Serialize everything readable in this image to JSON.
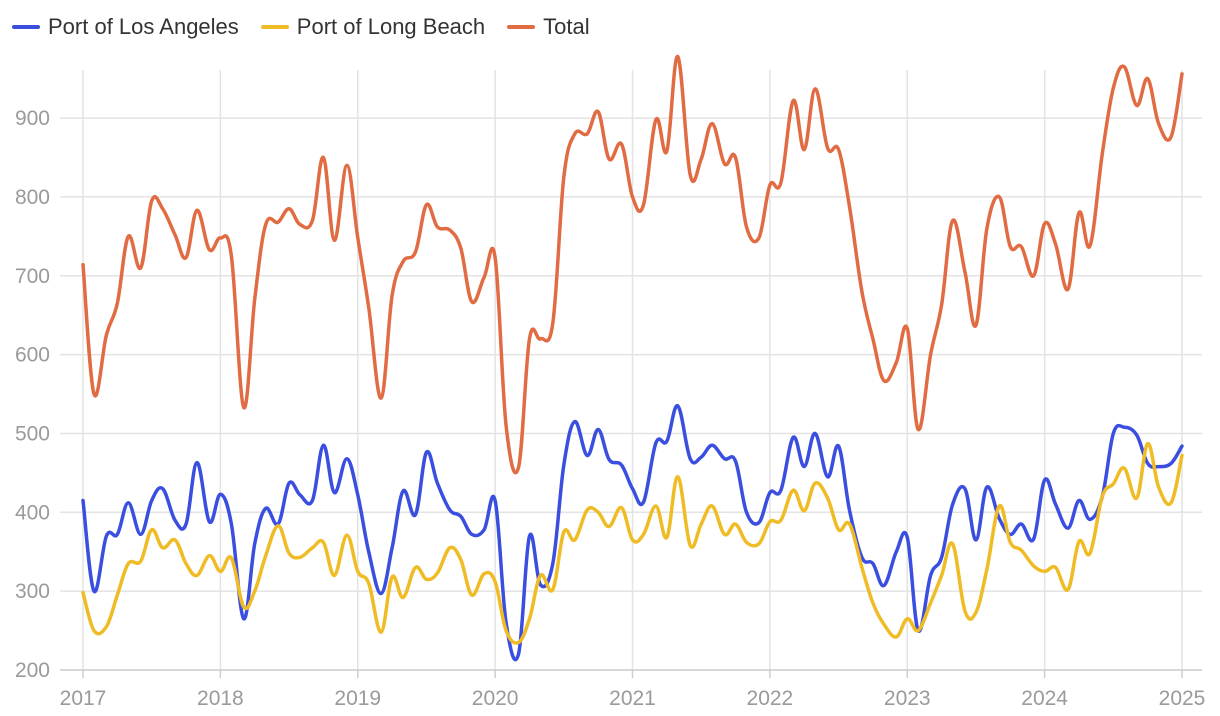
{
  "chart_data": {
    "type": "line",
    "title": "",
    "xlabel": "",
    "ylabel": "",
    "xlim": [
      2017,
      2025
    ],
    "ylim": [
      200,
      980
    ],
    "x_ticks": [
      "2017",
      "2018",
      "2019",
      "2020",
      "2021",
      "2022",
      "2023",
      "2024",
      "2025"
    ],
    "y_ticks": [
      "200",
      "300",
      "400",
      "500",
      "600",
      "700",
      "800",
      "900"
    ],
    "grid": true,
    "legend_position": "top-left",
    "series": [
      {
        "name": "Port of Los Angeles",
        "color": "#3a4ee0",
        "points": [
          [
            2017.0,
            415
          ],
          [
            2017.08,
            300
          ],
          [
            2017.17,
            370
          ],
          [
            2017.25,
            372
          ],
          [
            2017.33,
            412
          ],
          [
            2017.42,
            372
          ],
          [
            2017.5,
            415
          ],
          [
            2017.58,
            430
          ],
          [
            2017.67,
            390
          ],
          [
            2017.75,
            385
          ],
          [
            2017.83,
            463
          ],
          [
            2017.92,
            388
          ],
          [
            2018.0,
            423
          ],
          [
            2018.08,
            385
          ],
          [
            2018.17,
            265
          ],
          [
            2018.25,
            360
          ],
          [
            2018.33,
            405
          ],
          [
            2018.42,
            385
          ],
          [
            2018.5,
            437
          ],
          [
            2018.58,
            422
          ],
          [
            2018.67,
            415
          ],
          [
            2018.75,
            485
          ],
          [
            2018.83,
            425
          ],
          [
            2018.92,
            468
          ],
          [
            2019.0,
            422
          ],
          [
            2019.08,
            350
          ],
          [
            2019.17,
            297
          ],
          [
            2019.25,
            355
          ],
          [
            2019.33,
            427
          ],
          [
            2019.42,
            397
          ],
          [
            2019.5,
            476
          ],
          [
            2019.58,
            437
          ],
          [
            2019.67,
            403
          ],
          [
            2019.75,
            395
          ],
          [
            2019.83,
            372
          ],
          [
            2019.92,
            378
          ],
          [
            2020.0,
            415
          ],
          [
            2020.08,
            260
          ],
          [
            2020.17,
            220
          ],
          [
            2020.25,
            370
          ],
          [
            2020.33,
            308
          ],
          [
            2020.42,
            335
          ],
          [
            2020.5,
            460
          ],
          [
            2020.58,
            515
          ],
          [
            2020.67,
            472
          ],
          [
            2020.75,
            505
          ],
          [
            2020.83,
            467
          ],
          [
            2020.92,
            460
          ],
          [
            2021.0,
            430
          ],
          [
            2021.08,
            413
          ],
          [
            2021.17,
            488
          ],
          [
            2021.25,
            490
          ],
          [
            2021.33,
            535
          ],
          [
            2021.42,
            468
          ],
          [
            2021.5,
            470
          ],
          [
            2021.58,
            485
          ],
          [
            2021.67,
            468
          ],
          [
            2021.75,
            465
          ],
          [
            2021.83,
            400
          ],
          [
            2021.92,
            387
          ],
          [
            2022.0,
            425
          ],
          [
            2022.08,
            428
          ],
          [
            2022.17,
            495
          ],
          [
            2022.25,
            458
          ],
          [
            2022.33,
            500
          ],
          [
            2022.42,
            445
          ],
          [
            2022.5,
            484
          ],
          [
            2022.58,
            402
          ],
          [
            2022.67,
            343
          ],
          [
            2022.75,
            335
          ],
          [
            2022.83,
            307
          ],
          [
            2022.92,
            350
          ],
          [
            2023.0,
            368
          ],
          [
            2023.08,
            250
          ],
          [
            2023.17,
            320
          ],
          [
            2023.25,
            343
          ],
          [
            2023.33,
            410
          ],
          [
            2023.42,
            430
          ],
          [
            2023.5,
            365
          ],
          [
            2023.58,
            432
          ],
          [
            2023.67,
            392
          ],
          [
            2023.75,
            372
          ],
          [
            2023.83,
            385
          ],
          [
            2023.92,
            366
          ],
          [
            2024.0,
            441
          ],
          [
            2024.08,
            410
          ],
          [
            2024.17,
            380
          ],
          [
            2024.25,
            415
          ],
          [
            2024.33,
            391
          ],
          [
            2024.42,
            420
          ],
          [
            2024.5,
            500
          ],
          [
            2024.58,
            508
          ],
          [
            2024.67,
            498
          ],
          [
            2024.75,
            462
          ],
          [
            2024.83,
            458
          ],
          [
            2024.92,
            462
          ],
          [
            2025.0,
            484
          ]
        ]
      },
      {
        "name": "Port of Long Beach",
        "color": "#efbc26",
        "points": [
          [
            2017.0,
            298
          ],
          [
            2017.08,
            250
          ],
          [
            2017.17,
            255
          ],
          [
            2017.25,
            295
          ],
          [
            2017.33,
            335
          ],
          [
            2017.42,
            338
          ],
          [
            2017.5,
            378
          ],
          [
            2017.58,
            355
          ],
          [
            2017.67,
            365
          ],
          [
            2017.75,
            335
          ],
          [
            2017.83,
            320
          ],
          [
            2017.92,
            345
          ],
          [
            2018.0,
            325
          ],
          [
            2018.08,
            342
          ],
          [
            2018.17,
            280
          ],
          [
            2018.25,
            300
          ],
          [
            2018.33,
            345
          ],
          [
            2018.42,
            383
          ],
          [
            2018.5,
            348
          ],
          [
            2018.58,
            343
          ],
          [
            2018.67,
            355
          ],
          [
            2018.75,
            362
          ],
          [
            2018.83,
            320
          ],
          [
            2018.92,
            371
          ],
          [
            2019.0,
            325
          ],
          [
            2019.08,
            310
          ],
          [
            2019.17,
            248
          ],
          [
            2019.25,
            318
          ],
          [
            2019.33,
            292
          ],
          [
            2019.42,
            330
          ],
          [
            2019.5,
            315
          ],
          [
            2019.58,
            323
          ],
          [
            2019.67,
            355
          ],
          [
            2019.75,
            340
          ],
          [
            2019.83,
            295
          ],
          [
            2019.92,
            322
          ],
          [
            2020.0,
            312
          ],
          [
            2020.08,
            250
          ],
          [
            2020.17,
            235
          ],
          [
            2020.25,
            265
          ],
          [
            2020.33,
            320
          ],
          [
            2020.42,
            302
          ],
          [
            2020.5,
            375
          ],
          [
            2020.58,
            365
          ],
          [
            2020.67,
            403
          ],
          [
            2020.75,
            400
          ],
          [
            2020.83,
            382
          ],
          [
            2020.92,
            406
          ],
          [
            2021.0,
            365
          ],
          [
            2021.08,
            372
          ],
          [
            2021.17,
            408
          ],
          [
            2021.25,
            368
          ],
          [
            2021.33,
            445
          ],
          [
            2021.42,
            358
          ],
          [
            2021.5,
            385
          ],
          [
            2021.58,
            408
          ],
          [
            2021.67,
            372
          ],
          [
            2021.75,
            385
          ],
          [
            2021.83,
            362
          ],
          [
            2021.92,
            360
          ],
          [
            2022.0,
            388
          ],
          [
            2022.08,
            390
          ],
          [
            2022.17,
            428
          ],
          [
            2022.25,
            402
          ],
          [
            2022.33,
            437
          ],
          [
            2022.42,
            418
          ],
          [
            2022.5,
            378
          ],
          [
            2022.58,
            385
          ],
          [
            2022.67,
            330
          ],
          [
            2022.75,
            285
          ],
          [
            2022.83,
            258
          ],
          [
            2022.92,
            242
          ],
          [
            2023.0,
            265
          ],
          [
            2023.08,
            250
          ],
          [
            2023.17,
            285
          ],
          [
            2023.25,
            320
          ],
          [
            2023.33,
            360
          ],
          [
            2023.42,
            275
          ],
          [
            2023.5,
            273
          ],
          [
            2023.58,
            328
          ],
          [
            2023.67,
            408
          ],
          [
            2023.75,
            362
          ],
          [
            2023.83,
            352
          ],
          [
            2023.92,
            332
          ],
          [
            2024.0,
            325
          ],
          [
            2024.08,
            330
          ],
          [
            2024.17,
            302
          ],
          [
            2024.25,
            363
          ],
          [
            2024.33,
            348
          ],
          [
            2024.42,
            420
          ],
          [
            2024.5,
            436
          ],
          [
            2024.58,
            456
          ],
          [
            2024.67,
            418
          ],
          [
            2024.75,
            487
          ],
          [
            2024.83,
            432
          ],
          [
            2024.92,
            412
          ],
          [
            2025.0,
            472
          ]
        ]
      },
      {
        "name": "Total",
        "color": "#e16c43",
        "points": [
          [
            2017.0,
            714
          ],
          [
            2017.08,
            550
          ],
          [
            2017.17,
            625
          ],
          [
            2017.25,
            665
          ],
          [
            2017.33,
            750
          ],
          [
            2017.42,
            710
          ],
          [
            2017.5,
            795
          ],
          [
            2017.58,
            785
          ],
          [
            2017.67,
            752
          ],
          [
            2017.75,
            723
          ],
          [
            2017.83,
            783
          ],
          [
            2017.92,
            733
          ],
          [
            2018.0,
            748
          ],
          [
            2018.08,
            725
          ],
          [
            2018.17,
            533
          ],
          [
            2018.25,
            670
          ],
          [
            2018.33,
            765
          ],
          [
            2018.42,
            768
          ],
          [
            2018.5,
            785
          ],
          [
            2018.58,
            765
          ],
          [
            2018.67,
            770
          ],
          [
            2018.75,
            850
          ],
          [
            2018.83,
            745
          ],
          [
            2018.92,
            840
          ],
          [
            2019.0,
            748
          ],
          [
            2019.08,
            660
          ],
          [
            2019.17,
            545
          ],
          [
            2019.25,
            675
          ],
          [
            2019.33,
            718
          ],
          [
            2019.42,
            730
          ],
          [
            2019.5,
            790
          ],
          [
            2019.58,
            762
          ],
          [
            2019.67,
            758
          ],
          [
            2019.75,
            735
          ],
          [
            2019.83,
            667
          ],
          [
            2019.92,
            698
          ],
          [
            2020.0,
            723
          ],
          [
            2020.08,
            510
          ],
          [
            2020.17,
            457
          ],
          [
            2020.25,
            620
          ],
          [
            2020.33,
            620
          ],
          [
            2020.42,
            640
          ],
          [
            2020.5,
            825
          ],
          [
            2020.58,
            880
          ],
          [
            2020.67,
            880
          ],
          [
            2020.75,
            908
          ],
          [
            2020.83,
            848
          ],
          [
            2020.92,
            867
          ],
          [
            2021.0,
            800
          ],
          [
            2021.08,
            790
          ],
          [
            2021.17,
            898
          ],
          [
            2021.25,
            858
          ],
          [
            2021.33,
            978
          ],
          [
            2021.42,
            828
          ],
          [
            2021.5,
            848
          ],
          [
            2021.58,
            893
          ],
          [
            2021.67,
            842
          ],
          [
            2021.75,
            850
          ],
          [
            2021.83,
            762
          ],
          [
            2021.92,
            748
          ],
          [
            2022.0,
            815
          ],
          [
            2022.08,
            818
          ],
          [
            2022.17,
            922
          ],
          [
            2022.25,
            860
          ],
          [
            2022.33,
            937
          ],
          [
            2022.42,
            862
          ],
          [
            2022.5,
            860
          ],
          [
            2022.58,
            787
          ],
          [
            2022.67,
            680
          ],
          [
            2022.75,
            620
          ],
          [
            2022.83,
            567
          ],
          [
            2022.92,
            590
          ],
          [
            2023.0,
            633
          ],
          [
            2023.08,
            505
          ],
          [
            2023.17,
            600
          ],
          [
            2023.25,
            663
          ],
          [
            2023.33,
            770
          ],
          [
            2023.42,
            705
          ],
          [
            2023.5,
            637
          ],
          [
            2023.58,
            760
          ],
          [
            2023.67,
            800
          ],
          [
            2023.75,
            737
          ],
          [
            2023.83,
            737
          ],
          [
            2023.92,
            700
          ],
          [
            2024.0,
            766
          ],
          [
            2024.08,
            740
          ],
          [
            2024.17,
            683
          ],
          [
            2024.25,
            780
          ],
          [
            2024.33,
            738
          ],
          [
            2024.42,
            855
          ],
          [
            2024.5,
            938
          ],
          [
            2024.58,
            965
          ],
          [
            2024.67,
            916
          ],
          [
            2024.75,
            950
          ],
          [
            2024.83,
            893
          ],
          [
            2024.92,
            876
          ],
          [
            2025.0,
            956
          ]
        ]
      }
    ]
  }
}
